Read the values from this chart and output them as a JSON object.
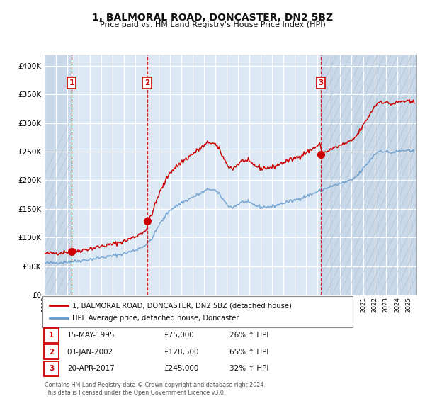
{
  "title": "1, BALMORAL ROAD, DONCASTER, DN2 5BZ",
  "subtitle": "Price paid vs. HM Land Registry's House Price Index (HPI)",
  "legend_line1": "1, BALMORAL ROAD, DONCASTER, DN2 5BZ (detached house)",
  "legend_line2": "HPI: Average price, detached house, Doncaster",
  "sale_color": "#cc0000",
  "hpi_color": "#6699cc",
  "bg_color": "#dce9f5",
  "grid_color": "#ffffff",
  "transactions": [
    {
      "date_str": "15-MAY-1995",
      "date_num": 1995.37,
      "price": 75000,
      "label": "1",
      "pct": "26%"
    },
    {
      "date_str": "03-JAN-2002",
      "date_num": 2002.01,
      "price": 128500,
      "label": "2",
      "pct": "65%"
    },
    {
      "date_str": "20-APR-2017",
      "date_num": 2017.3,
      "price": 245000,
      "label": "3",
      "pct": "32%"
    }
  ],
  "footnote1": "Contains HM Land Registry data © Crown copyright and database right 2024.",
  "footnote2": "This data is licensed under the Open Government Licence v3.0.",
  "ylim": [
    0,
    420000
  ],
  "xlim_start": 1993.0,
  "xlim_end": 2025.7,
  "hpi_anchors": [
    [
      1993.0,
      55000
    ],
    [
      1994.0,
      56000
    ],
    [
      1995.0,
      57500
    ],
    [
      1996.0,
      59000
    ],
    [
      1997.0,
      62000
    ],
    [
      1998.0,
      65000
    ],
    [
      1999.0,
      68000
    ],
    [
      2000.0,
      72000
    ],
    [
      2001.0,
      78000
    ],
    [
      2002.0,
      88000
    ],
    [
      2002.5,
      100000
    ],
    [
      2003.0,
      120000
    ],
    [
      2004.0,
      148000
    ],
    [
      2005.0,
      160000
    ],
    [
      2006.0,
      170000
    ],
    [
      2007.0,
      180000
    ],
    [
      2007.5,
      185000
    ],
    [
      2008.0,
      182000
    ],
    [
      2008.5,
      172000
    ],
    [
      2009.0,
      158000
    ],
    [
      2009.5,
      152000
    ],
    [
      2010.0,
      158000
    ],
    [
      2010.5,
      163000
    ],
    [
      2011.0,
      160000
    ],
    [
      2012.0,
      153000
    ],
    [
      2013.0,
      154000
    ],
    [
      2014.0,
      160000
    ],
    [
      2015.0,
      165000
    ],
    [
      2016.0,
      172000
    ],
    [
      2016.5,
      176000
    ],
    [
      2017.0,
      180000
    ],
    [
      2018.0,
      188000
    ],
    [
      2019.0,
      194000
    ],
    [
      2019.5,
      197000
    ],
    [
      2020.0,
      200000
    ],
    [
      2020.5,
      208000
    ],
    [
      2021.0,
      220000
    ],
    [
      2021.5,
      232000
    ],
    [
      2022.0,
      245000
    ],
    [
      2022.5,
      252000
    ],
    [
      2023.0,
      250000
    ],
    [
      2023.5,
      248000
    ],
    [
      2024.0,
      250000
    ],
    [
      2024.5,
      252000
    ],
    [
      2025.3,
      250000
    ]
  ]
}
